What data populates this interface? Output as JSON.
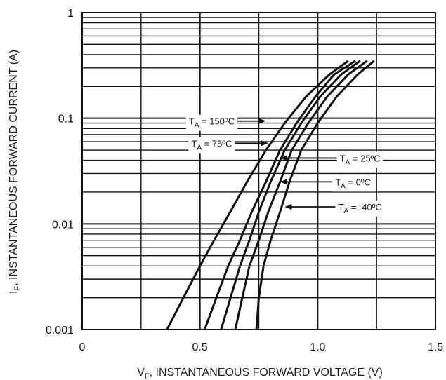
{
  "chart_data": {
    "type": "line",
    "title": "",
    "xlabel": "V",
    "xlabel_sub": "F",
    "xlabel_rest": ", INSTANTANEOUS FORWARD VOLTAGE (V)",
    "ylabel": "I",
    "ylabel_sub": "F",
    "ylabel_rest": ", INSTANTANEOUS FORWARD CURRENT (A)",
    "xlim": [
      0,
      1.5
    ],
    "ylim": [
      0.001,
      1
    ],
    "yscale": "log",
    "grid": true,
    "x_ticks": [
      {
        "value": 0,
        "label": "0"
      },
      {
        "value": 0.5,
        "label": "0.5"
      },
      {
        "value": 1.0,
        "label": "1.0"
      },
      {
        "value": 1.5,
        "label": "1.5"
      }
    ],
    "y_ticks": [
      {
        "value": 1,
        "label": "1"
      },
      {
        "value": 0.1,
        "label": "0.1"
      },
      {
        "value": 0.01,
        "label": "0.01"
      },
      {
        "value": 0.001,
        "label": "0.001"
      }
    ],
    "series": [
      {
        "name": "150ºC",
        "x": [
          0.36,
          0.43,
          0.5,
          0.56,
          0.62,
          0.7,
          0.78,
          0.86,
          0.95,
          1.05,
          1.13
        ],
        "y": [
          0.001,
          0.002,
          0.004,
          0.007,
          0.012,
          0.025,
          0.05,
          0.09,
          0.16,
          0.26,
          0.35
        ]
      },
      {
        "name": "75ºC",
        "x": [
          0.52,
          0.57,
          0.62,
          0.67,
          0.72,
          0.78,
          0.84,
          0.91,
          0.99,
          1.07,
          1.16
        ],
        "y": [
          0.001,
          0.002,
          0.004,
          0.007,
          0.013,
          0.025,
          0.05,
          0.09,
          0.16,
          0.26,
          0.35
        ]
      },
      {
        "name": "25ºC",
        "x": [
          0.59,
          0.63,
          0.67,
          0.71,
          0.75,
          0.8,
          0.86,
          0.93,
          1.01,
          1.1,
          1.18
        ],
        "y": [
          0.001,
          0.002,
          0.004,
          0.007,
          0.013,
          0.025,
          0.05,
          0.09,
          0.16,
          0.26,
          0.35
        ]
      },
      {
        "name": "0ºC",
        "x": [
          0.65,
          0.68,
          0.71,
          0.75,
          0.79,
          0.84,
          0.89,
          0.96,
          1.04,
          1.13,
          1.21
        ],
        "y": [
          0.001,
          0.002,
          0.004,
          0.007,
          0.013,
          0.025,
          0.05,
          0.09,
          0.16,
          0.26,
          0.35
        ]
      },
      {
        "name": "-40ºC",
        "x": [
          0.74,
          0.75,
          0.77,
          0.8,
          0.84,
          0.88,
          0.93,
          1.0,
          1.08,
          1.17,
          1.24
        ],
        "y": [
          0.001,
          0.002,
          0.004,
          0.007,
          0.013,
          0.025,
          0.05,
          0.09,
          0.16,
          0.26,
          0.35
        ]
      }
    ],
    "annotations": [
      {
        "prefix": "T",
        "sub": "A",
        "text": " = 150ºC",
        "x": 0.55,
        "y": 0.094,
        "arrow_to": [
          0.78,
          0.094
        ]
      },
      {
        "prefix": "T",
        "sub": "A",
        "text": " = 75ºC",
        "x": 0.55,
        "y": 0.058,
        "arrow_to": [
          0.79,
          0.058
        ]
      },
      {
        "prefix": "T",
        "sub": "A",
        "text": " = 25ºC",
        "x": 1.18,
        "y": 0.042,
        "arrow_to": [
          0.84,
          0.042
        ]
      },
      {
        "prefix": "T",
        "sub": "A",
        "text": " = 0ºC",
        "x": 1.15,
        "y": 0.025,
        "arrow_to": [
          0.84,
          0.025
        ]
      },
      {
        "prefix": "T",
        "sub": "A",
        "text": " = -40ºC",
        "x": 1.18,
        "y": 0.0145,
        "arrow_to": [
          0.86,
          0.0145
        ]
      }
    ]
  }
}
